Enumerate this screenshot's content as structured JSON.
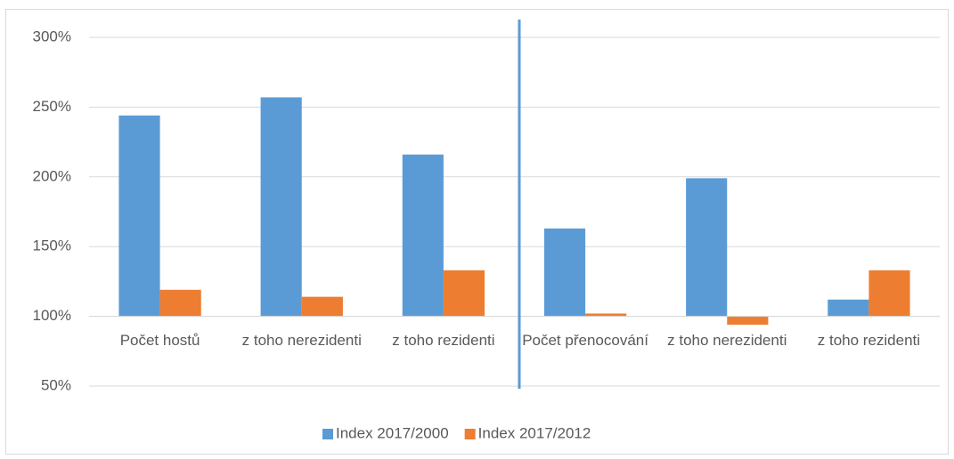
{
  "chart_data": {
    "type": "bar",
    "categories": [
      "Počet hostů",
      "z toho nerezidenti",
      "z toho rezidenti",
      "Počet přenocování",
      "z toho nerezidenti",
      "z toho rezidenti"
    ],
    "series": [
      {
        "name": "Index 2017/2000",
        "color": "#5b9bd5",
        "values": [
          244,
          257,
          216,
          163,
          199,
          112
        ]
      },
      {
        "name": "Index 2017/2012",
        "color": "#ed7d31",
        "values": [
          119,
          114,
          133,
          102,
          94,
          133
        ]
      }
    ],
    "ylim": [
      50,
      300
    ],
    "yticks": [
      {
        "value": 50,
        "label": "50%"
      },
      {
        "value": 100,
        "label": "100%"
      },
      {
        "value": 150,
        "label": "150%"
      },
      {
        "value": 200,
        "label": "200%"
      },
      {
        "value": 250,
        "label": "250%"
      },
      {
        "value": 300,
        "label": "300%"
      }
    ],
    "x_axis_crosses": 100,
    "grid": true,
    "legend": "bottom"
  }
}
